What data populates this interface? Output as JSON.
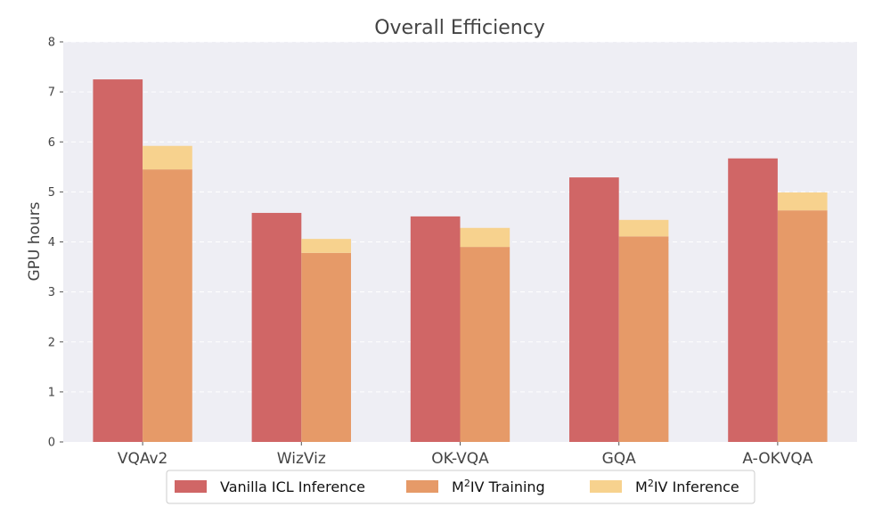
{
  "chart_data": {
    "type": "bar",
    "title": "Overall Efficiency",
    "xlabel": "",
    "ylabel": "GPU hours",
    "categories": [
      "VQAv2",
      "WizViz",
      "OK-VQA",
      "GQA",
      "A-OKVQA"
    ],
    "ylim": [
      0,
      8
    ],
    "yticks": [
      "0",
      "1",
      "2",
      "3",
      "4",
      "5",
      "6",
      "7",
      "8"
    ],
    "grid": true,
    "legend_position": "bottom",
    "series": [
      {
        "name": "Vanilla ICL Inference",
        "group": "vanilla",
        "color": "#d06666",
        "values": [
          7.25,
          4.58,
          4.51,
          5.29,
          5.67
        ]
      },
      {
        "name": "M²IV Training",
        "group": "m2iv",
        "color": "#e69a68",
        "values": [
          5.45,
          3.78,
          3.9,
          4.11,
          4.63
        ]
      },
      {
        "name": "M²IV Inference",
        "group": "m2iv",
        "stacked_on": "M²IV Training",
        "color": "#f7d28e",
        "values": [
          0.47,
          0.28,
          0.38,
          0.33,
          0.36
        ]
      }
    ],
    "legend": [
      {
        "base": "Vanilla ICL Inference",
        "sup": "",
        "rest": "",
        "color": "#d06666"
      },
      {
        "base": "M",
        "sup": "2",
        "rest": "IV Training",
        "color": "#e69a68"
      },
      {
        "base": "M",
        "sup": "2",
        "rest": "IV Inference",
        "color": "#f7d28e"
      }
    ]
  }
}
